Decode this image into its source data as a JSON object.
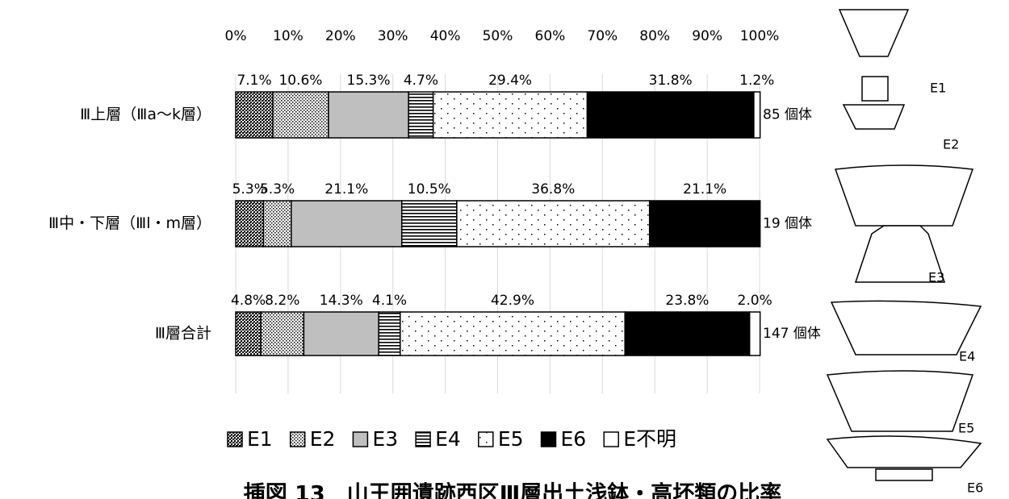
{
  "chart_data": {
    "type": "stacked-bar-horizontal",
    "title": "挿図 13　山王囲遺跡西区Ⅲ層出土浅鉢・高坏類の比率",
    "categories": [
      "Ⅲ上層（Ⅲa～k層）",
      "Ⅲ中・下層（Ⅲl・m層）",
      "Ⅲ層合計"
    ],
    "bar_end_labels": [
      "85 個体",
      "19 個体",
      "147 個体"
    ],
    "xlim": [
      0,
      100
    ],
    "xticks": [
      {
        "value": 0,
        "label": "0%"
      },
      {
        "value": 10,
        "label": "10%"
      },
      {
        "value": 20,
        "label": "20%"
      },
      {
        "value": 30,
        "label": "30%"
      },
      {
        "value": 40,
        "label": "40%"
      },
      {
        "value": 50,
        "label": "50%"
      },
      {
        "value": 60,
        "label": "60%"
      },
      {
        "value": 70,
        "label": "70%"
      },
      {
        "value": 80,
        "label": "80%"
      },
      {
        "value": 90,
        "label": "90%"
      },
      {
        "value": 100,
        "label": "100%"
      }
    ],
    "grid": true,
    "legend": "bottom",
    "series": [
      {
        "name": "E1",
        "color": "#000000",
        "pattern": "cross",
        "values": [
          7.1,
          5.3,
          4.8
        ],
        "value_labels": [
          "7.1%",
          "5.3%",
          "4.8%"
        ]
      },
      {
        "name": "E2",
        "color": "#000000",
        "pattern": "dense-dots",
        "values": [
          10.6,
          5.3,
          8.2
        ],
        "value_labels": [
          "10.6%",
          "5.3%",
          "8.2%"
        ]
      },
      {
        "name": "E3",
        "color": "#bfbfbf",
        "values": [
          15.3,
          21.1,
          14.3
        ],
        "value_labels": [
          "15.3%",
          "21.1%",
          "14.3%"
        ]
      },
      {
        "name": "E4",
        "color": "#000000",
        "pattern": "hlines",
        "values": [
          4.7,
          10.5,
          4.1
        ],
        "value_labels": [
          "4.7%",
          "10.5%",
          "4.1%"
        ]
      },
      {
        "name": "E5",
        "color": "#000000",
        "pattern": "sparse-dots",
        "values": [
          29.4,
          36.8,
          42.9
        ],
        "value_labels": [
          "29.4%",
          "36.8%",
          "42.9%"
        ]
      },
      {
        "name": "E6",
        "color": "#000000",
        "values": [
          31.8,
          21.1,
          23.8
        ],
        "value_labels": [
          "31.8%",
          "21.1%",
          "23.8%"
        ]
      },
      {
        "name": "E不明",
        "color": "#ffffff",
        "values": [
          1.2,
          null,
          2.0
        ],
        "value_labels": [
          "1.2%",
          null,
          "2.0%"
        ]
      }
    ]
  },
  "illustrations": {
    "labels": [
      "E1",
      "E2",
      "E3",
      "E4",
      "E5",
      "E6"
    ]
  }
}
